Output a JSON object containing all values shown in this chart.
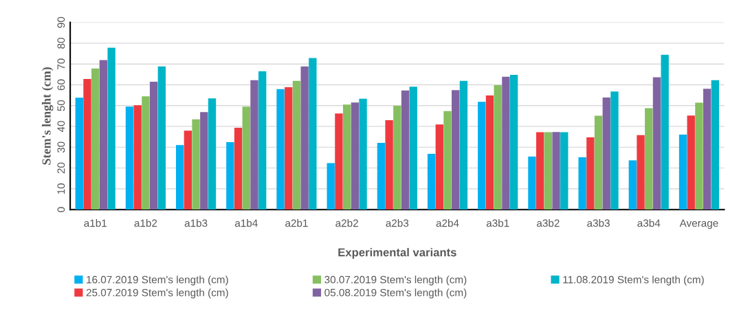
{
  "chart_data": {
    "type": "bar",
    "xlabel": "Experimental variants",
    "ylabel": "Stem's lenght (cm)",
    "categories": [
      "a1b1",
      "a1b2",
      "a1b3",
      "a1b4",
      "a2b1",
      "a2b2",
      "a2b3",
      "a2b4",
      "a3b1",
      "a3b2",
      "a3b3",
      "a3b4",
      "Average"
    ],
    "series": [
      {
        "name": "16.07.2019 Stem's length (cm)",
        "color": "#00b0f0",
        "values": [
          53.8,
          49.5,
          31,
          32.4,
          57.9,
          22.4,
          32.1,
          26.8,
          51.8,
          25.5,
          25.2,
          23.7,
          36.1
        ]
      },
      {
        "name": "25.07.2019 Stem's length (cm)",
        "color": "#ee3a3f",
        "values": [
          62.8,
          50.2,
          38,
          39.4,
          58.8,
          46.2,
          43,
          40.9,
          54.9,
          37.2,
          34.7,
          35.8,
          45.2
        ]
      },
      {
        "name": "30.07.2019 Stem's length (cm)",
        "color": "#86bf60",
        "values": [
          67.8,
          54.5,
          43.4,
          49.5,
          61.9,
          50.5,
          49.9,
          47.4,
          59.8,
          37.2,
          45.1,
          48.8,
          51.4
        ]
      },
      {
        "name": "05.08.2019 Stem's length (cm)",
        "color": "#8064a2",
        "values": [
          71.9,
          61.5,
          46.9,
          62.2,
          68.8,
          51.5,
          57.3,
          57.4,
          63.9,
          37.3,
          53.9,
          63.6,
          58.1
        ]
      },
      {
        "name": "11.08.2019 Stem's length (cm)",
        "color": "#00b4c8",
        "values": [
          77.8,
          68.8,
          53.5,
          66.5,
          72.9,
          53.3,
          59.1,
          61.9,
          64.8,
          37.2,
          56.8,
          74.4,
          62.2
        ]
      }
    ],
    "ylim": [
      0,
      90
    ],
    "yticks": [
      0,
      10,
      20,
      30,
      40,
      50,
      60,
      70,
      80,
      90
    ],
    "grid": "y",
    "legend": "bottom"
  }
}
